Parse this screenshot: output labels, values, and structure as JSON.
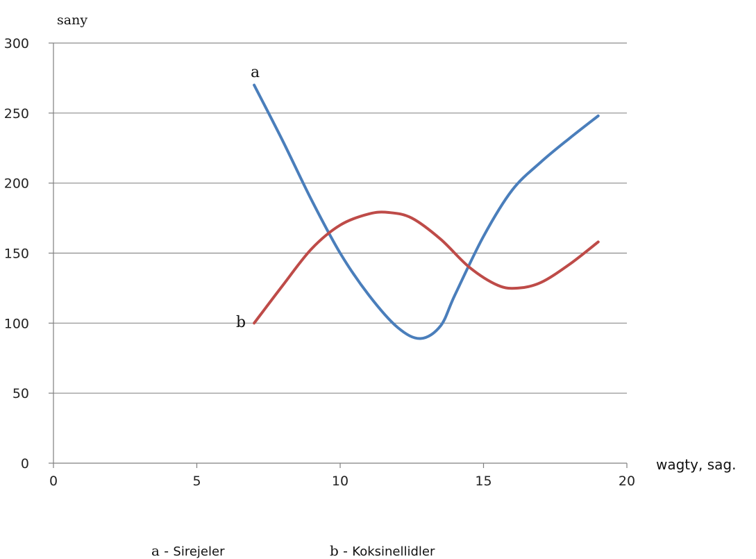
{
  "chart_data": {
    "type": "line",
    "xlabel": "wagty, sag.",
    "ylabel": "sany",
    "xlim": [
      0,
      20
    ],
    "ylim": [
      0,
      300
    ],
    "x_ticks": [
      "0",
      "5",
      "10",
      "15",
      "20"
    ],
    "y_ticks": [
      "0",
      "50",
      "100",
      "150",
      "200",
      "250",
      "300"
    ],
    "grid": "horizontal",
    "series": [
      {
        "name": "a",
        "color": "#4a7ebb",
        "x": [
          7,
          8,
          9,
          10,
          11,
          12,
          12.8,
          13.5,
          14,
          15,
          16,
          17,
          18,
          19
        ],
        "y": [
          270,
          230,
          188,
          150,
          120,
          97,
          89,
          98,
          120,
          162,
          195,
          215,
          232,
          248
        ]
      },
      {
        "name": "b",
        "color": "#be4b48",
        "x": [
          7,
          8,
          9,
          10,
          11,
          11.7,
          12.5,
          13.5,
          14.5,
          15.5,
          16.2,
          17,
          18,
          19
        ],
        "y": [
          100,
          127,
          153,
          170,
          178,
          179,
          175,
          160,
          140,
          127,
          125,
          129,
          142,
          158
        ]
      }
    ],
    "legend": [
      {
        "key": "a - ",
        "label": "Sirejeler"
      },
      {
        "key": "b - ",
        "label": "Koksinellidler"
      }
    ]
  }
}
